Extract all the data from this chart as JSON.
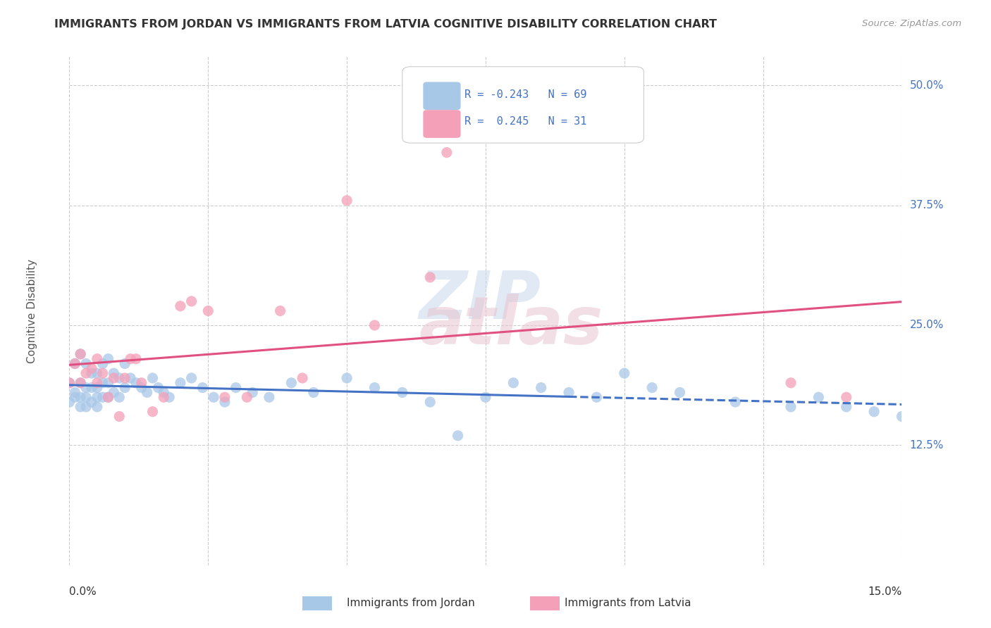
{
  "title": "IMMIGRANTS FROM JORDAN VS IMMIGRANTS FROM LATVIA COGNITIVE DISABILITY CORRELATION CHART",
  "source": "Source: ZipAtlas.com",
  "ylabel": "Cognitive Disability",
  "yticks": [
    0.125,
    0.25,
    0.375,
    0.5
  ],
  "ytick_labels": [
    "12.5%",
    "25.0%",
    "37.5%",
    "50.0%"
  ],
  "xtick_labels": [
    "0.0%",
    "15.0%"
  ],
  "xlim": [
    0.0,
    0.15
  ],
  "ylim": [
    0.0,
    0.53
  ],
  "watermark_line1": "ZIP",
  "watermark_line2": "atlas",
  "jordan_color": "#a8c8e8",
  "latvia_color": "#f4a0b8",
  "jordan_R": -0.243,
  "jordan_N": 69,
  "latvia_R": 0.245,
  "latvia_N": 31,
  "jordan_line_color": "#4472c4",
  "latvia_line_color": "#e05080",
  "jordan_scatter_x": [
    0.0,
    0.0,
    0.001,
    0.001,
    0.001,
    0.002,
    0.002,
    0.002,
    0.002,
    0.003,
    0.003,
    0.003,
    0.003,
    0.004,
    0.004,
    0.004,
    0.005,
    0.005,
    0.005,
    0.005,
    0.006,
    0.006,
    0.006,
    0.007,
    0.007,
    0.007,
    0.008,
    0.008,
    0.009,
    0.009,
    0.01,
    0.01,
    0.011,
    0.012,
    0.013,
    0.014,
    0.015,
    0.016,
    0.017,
    0.018,
    0.02,
    0.022,
    0.024,
    0.026,
    0.028,
    0.03,
    0.033,
    0.036,
    0.04,
    0.044,
    0.05,
    0.055,
    0.06,
    0.065,
    0.07,
    0.075,
    0.08,
    0.085,
    0.09,
    0.095,
    0.1,
    0.105,
    0.11,
    0.12,
    0.13,
    0.135,
    0.14,
    0.145,
    0.15
  ],
  "jordan_scatter_y": [
    0.19,
    0.17,
    0.21,
    0.18,
    0.175,
    0.22,
    0.19,
    0.175,
    0.165,
    0.21,
    0.185,
    0.175,
    0.165,
    0.2,
    0.185,
    0.17,
    0.2,
    0.185,
    0.175,
    0.165,
    0.21,
    0.19,
    0.175,
    0.215,
    0.19,
    0.175,
    0.2,
    0.18,
    0.195,
    0.175,
    0.21,
    0.185,
    0.195,
    0.19,
    0.185,
    0.18,
    0.195,
    0.185,
    0.18,
    0.175,
    0.19,
    0.195,
    0.185,
    0.175,
    0.17,
    0.185,
    0.18,
    0.175,
    0.19,
    0.18,
    0.195,
    0.185,
    0.18,
    0.17,
    0.135,
    0.175,
    0.19,
    0.185,
    0.18,
    0.175,
    0.2,
    0.185,
    0.18,
    0.17,
    0.165,
    0.175,
    0.165,
    0.16,
    0.155
  ],
  "latvia_scatter_x": [
    0.0,
    0.001,
    0.002,
    0.002,
    0.003,
    0.004,
    0.005,
    0.005,
    0.006,
    0.007,
    0.008,
    0.009,
    0.01,
    0.011,
    0.012,
    0.013,
    0.015,
    0.017,
    0.02,
    0.022,
    0.025,
    0.028,
    0.032,
    0.038,
    0.042,
    0.05,
    0.055,
    0.065,
    0.068,
    0.13,
    0.14
  ],
  "latvia_scatter_y": [
    0.19,
    0.21,
    0.22,
    0.19,
    0.2,
    0.205,
    0.215,
    0.19,
    0.2,
    0.175,
    0.195,
    0.155,
    0.195,
    0.215,
    0.215,
    0.19,
    0.16,
    0.175,
    0.27,
    0.275,
    0.265,
    0.175,
    0.175,
    0.265,
    0.195,
    0.38,
    0.25,
    0.3,
    0.43,
    0.19,
    0.175
  ],
  "grid_color": "#cccccc",
  "bg_color": "#ffffff",
  "title_color": "#333333",
  "source_color": "#999999",
  "tick_color_right": "#4472c4",
  "tick_color_bottom": "#333333",
  "legend_box_color": "#dddddd"
}
